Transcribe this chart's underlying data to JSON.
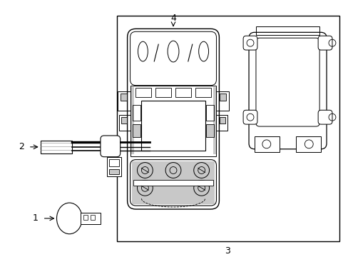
{
  "bg_color": "#ffffff",
  "line_color": "#000000",
  "gray_color": "#888888",
  "light_gray": "#c8c8c8",
  "fig_width": 4.89,
  "fig_height": 3.6,
  "dpi": 100
}
